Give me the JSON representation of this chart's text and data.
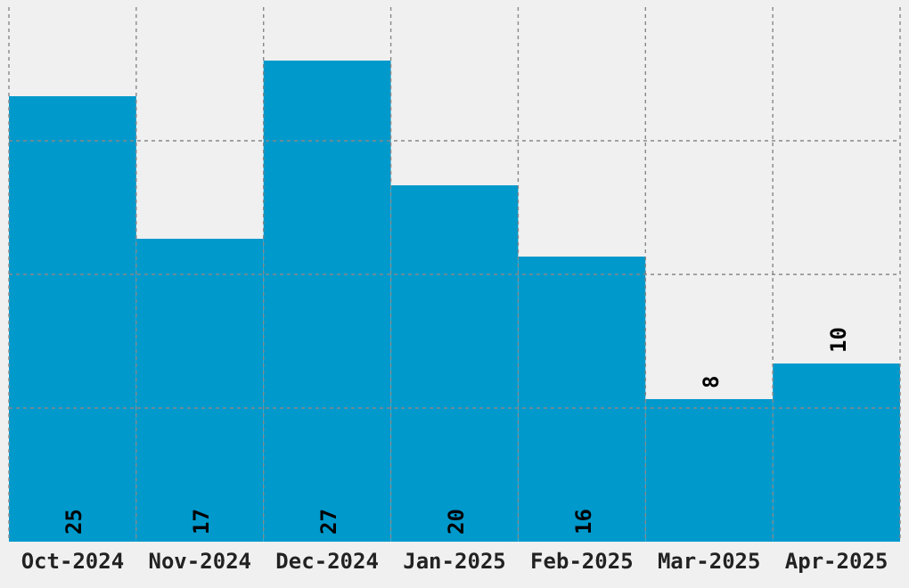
{
  "chart_data": {
    "type": "bar",
    "categories": [
      "Oct-2024",
      "Nov-2024",
      "Dec-2024",
      "Jan-2025",
      "Feb-2025",
      "Mar-2025",
      "Apr-2025"
    ],
    "values": [
      25,
      17,
      27,
      20,
      16,
      8,
      10
    ],
    "color": "#0099cc",
    "ylim": [
      0,
      30
    ],
    "yticks": [
      {
        "value": 7.5,
        "label": null
      },
      {
        "value": 15,
        "label": null
      },
      {
        "value": 22.5,
        "label": null
      }
    ],
    "tick_labels": "x",
    "grid": true,
    "data_labels": true
  }
}
